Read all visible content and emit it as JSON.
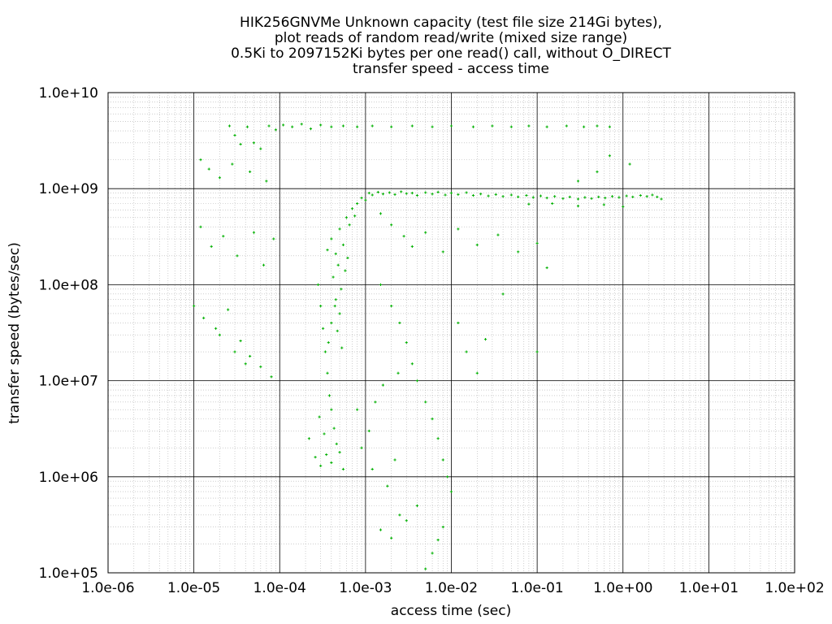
{
  "chart_data": {
    "type": "scatter",
    "title_lines": [
      "HIK256GNVMe Unknown capacity (test file size 214Gi bytes),",
      "plot reads of random read/write (mixed size range)",
      "0.5Ki to 2097152Ki bytes per one read() call, without O_DIRECT",
      "transfer speed - access time"
    ],
    "xlabel": "access time (sec)",
    "ylabel": "transfer speed (bytes/sec)",
    "x_scale": "log",
    "y_scale": "log",
    "xlim": [
      1e-06,
      100
    ],
    "ylim": [
      100000.0,
      10000000000.0
    ],
    "x_ticks": [
      1e-06,
      1e-05,
      0.0001,
      0.001,
      0.01,
      0.1,
      1,
      10,
      100
    ],
    "x_tick_labels": [
      "1.0e-06",
      "1.0e-05",
      "1.0e-04",
      "1.0e-03",
      "1.0e-02",
      "1.0e-01",
      "1.0e+00",
      "1.0e+01",
      "1.0e+02"
    ],
    "y_ticks": [
      100000.0,
      1000000.0,
      10000000.0,
      100000000.0,
      1000000000.0,
      10000000000.0
    ],
    "y_tick_labels": [
      "1.0e+05",
      "1.0e+06",
      "1.0e+07",
      "1.0e+08",
      "1.0e+09",
      "1.0e+10"
    ],
    "grid": true,
    "point_color": "#00b000",
    "series": [
      {
        "values": [
          [
            2.6e-05,
            4500000000.0
          ],
          [
            3e-05,
            3600000000.0
          ],
          [
            3.5e-05,
            2900000000.0
          ],
          [
            4.2e-05,
            4400000000.0
          ],
          [
            5e-05,
            3000000000.0
          ],
          [
            6e-05,
            2600000000.0
          ],
          [
            7.5e-05,
            4500000000.0
          ],
          [
            9e-05,
            4100000000.0
          ],
          [
            0.00011,
            4600000000.0
          ],
          [
            0.00014,
            4400000000.0
          ],
          [
            0.00018,
            4700000000.0
          ],
          [
            0.00023,
            4200000000.0
          ],
          [
            0.0003,
            4600000000.0
          ],
          [
            0.0004,
            4400000000.0
          ],
          [
            0.00055,
            4500000000.0
          ],
          [
            0.0008,
            4400000000.0
          ],
          [
            0.0012,
            4500000000.0
          ],
          [
            0.002,
            4400000000.0
          ],
          [
            0.0035,
            4500000000.0
          ],
          [
            0.006,
            4400000000.0
          ],
          [
            0.01,
            4500000000.0
          ],
          [
            0.018,
            4400000000.0
          ],
          [
            0.03,
            4500000000.0
          ],
          [
            0.05,
            4400000000.0
          ],
          [
            0.08,
            4500000000.0
          ],
          [
            0.13,
            4400000000.0
          ],
          [
            0.22,
            4500000000.0
          ],
          [
            0.35,
            4400000000.0
          ],
          [
            0.5,
            4500000000.0
          ],
          [
            0.7,
            4400000000.0
          ],
          [
            1.2e-05,
            2000000000.0
          ],
          [
            1.5e-05,
            1600000000.0
          ],
          [
            2e-05,
            1300000000.0
          ],
          [
            2.8e-05,
            1800000000.0
          ],
          [
            4.5e-05,
            1500000000.0
          ],
          [
            7e-05,
            1200000000.0
          ],
          [
            1.2e-05,
            400000000.0
          ],
          [
            1.6e-05,
            250000000.0
          ],
          [
            2.2e-05,
            320000000.0
          ],
          [
            3.2e-05,
            200000000.0
          ],
          [
            5e-05,
            350000000.0
          ],
          [
            6.5e-05,
            160000000.0
          ],
          [
            8.5e-05,
            300000000.0
          ],
          [
            1e-05,
            60000000.0
          ],
          [
            1.3e-05,
            45000000.0
          ],
          [
            1.8e-05,
            35000000.0
          ],
          [
            2.5e-05,
            55000000.0
          ],
          [
            3.5e-05,
            26000000.0
          ],
          [
            4.5e-05,
            18000000.0
          ],
          [
            6e-05,
            14000000.0
          ],
          [
            8e-05,
            11000000.0
          ],
          [
            2e-05,
            30000000.0
          ],
          [
            3e-05,
            20000000.0
          ],
          [
            4e-05,
            15000000.0
          ],
          [
            0.00028,
            100000000.0
          ],
          [
            0.0003,
            60000000.0
          ],
          [
            0.00032,
            35000000.0
          ],
          [
            0.00034,
            20000000.0
          ],
          [
            0.00036,
            12000000.0
          ],
          [
            0.00038,
            7000000.0
          ],
          [
            0.0004,
            5000000.0
          ],
          [
            0.00043,
            3200000.0
          ],
          [
            0.00046,
            2200000.0
          ],
          [
            0.0005,
            1800000.0
          ],
          [
            0.00055,
            1200000.0
          ],
          [
            0.00026,
            1600000.0
          ],
          [
            0.00022,
            2500000.0
          ],
          [
            0.0003,
            1300000.0
          ],
          [
            0.00035,
            1700000.0
          ],
          [
            0.0004,
            1400000.0
          ],
          [
            0.00029,
            4200000.0
          ],
          [
            0.00033,
            2800000.0
          ],
          [
            0.00036,
            230000000.0
          ],
          [
            0.0004,
            300000000.0
          ],
          [
            0.00045,
            210000000.0
          ],
          [
            0.0005,
            380000000.0
          ],
          [
            0.00055,
            260000000.0
          ],
          [
            0.0006,
            500000000.0
          ],
          [
            0.00065,
            420000000.0
          ],
          [
            0.0007,
            620000000.0
          ],
          [
            0.00075,
            520000000.0
          ],
          [
            0.0008,
            700000000.0
          ],
          [
            0.0009,
            800000000.0
          ],
          [
            0.001,
            760000000.0
          ],
          [
            0.00042,
            120000000.0
          ],
          [
            0.00048,
            160000000.0
          ],
          [
            0.00052,
            90000000.0
          ],
          [
            0.00058,
            140000000.0
          ],
          [
            0.00062,
            190000000.0
          ],
          [
            0.00044,
            60000000.0
          ],
          [
            0.0004,
            40000000.0
          ],
          [
            0.00037,
            25000000.0
          ],
          [
            0.00045,
            70000000.0
          ],
          [
            0.0005,
            50000000.0
          ],
          [
            0.00047,
            33000000.0
          ],
          [
            0.00053,
            22000000.0
          ],
          [
            0.0011,
            900000000.0
          ],
          [
            0.0012,
            860000000.0
          ],
          [
            0.0014,
            920000000.0
          ],
          [
            0.0016,
            880000000.0
          ],
          [
            0.0019,
            910000000.0
          ],
          [
            0.0022,
            870000000.0
          ],
          [
            0.0026,
            930000000.0
          ],
          [
            0.003,
            890000000.0
          ],
          [
            0.0035,
            900000000.0
          ],
          [
            0.004,
            850000000.0
          ],
          [
            0.005,
            910000000.0
          ],
          [
            0.006,
            880000000.0
          ],
          [
            0.007,
            920000000.0
          ],
          [
            0.0085,
            860000000.0
          ],
          [
            0.01,
            900000000.0
          ],
          [
            0.012,
            870000000.0
          ],
          [
            0.015,
            910000000.0
          ],
          [
            0.018,
            850000000.0
          ],
          [
            0.022,
            880000000.0
          ],
          [
            0.027,
            840000000.0
          ],
          [
            0.033,
            870000000.0
          ],
          [
            0.04,
            830000000.0
          ],
          [
            0.05,
            860000000.0
          ],
          [
            0.06,
            820000000.0
          ],
          [
            0.075,
            850000000.0
          ],
          [
            0.09,
            810000000.0
          ],
          [
            0.11,
            840000000.0
          ],
          [
            0.13,
            800000000.0
          ],
          [
            0.16,
            830000000.0
          ],
          [
            0.2,
            790000000.0
          ],
          [
            0.24,
            820000000.0
          ],
          [
            0.3,
            780000000.0
          ],
          [
            0.36,
            810000000.0
          ],
          [
            0.43,
            790000000.0
          ],
          [
            0.52,
            820000000.0
          ],
          [
            0.62,
            800000000.0
          ],
          [
            0.75,
            830000000.0
          ],
          [
            0.9,
            810000000.0
          ],
          [
            1.1,
            840000000.0
          ],
          [
            1.3,
            820000000.0
          ],
          [
            1.6,
            850000000.0
          ],
          [
            1.9,
            830000000.0
          ],
          [
            2.2,
            860000000.0
          ],
          [
            2.5,
            820000000.0
          ],
          [
            2.8,
            780000000.0
          ],
          [
            1.0,
            650000000.0
          ],
          [
            0.6,
            680000000.0
          ],
          [
            0.3,
            660000000.0
          ],
          [
            0.15,
            700000000.0
          ],
          [
            0.08,
            690000000.0
          ],
          [
            0.3,
            1200000000.0
          ],
          [
            0.5,
            1500000000.0
          ],
          [
            0.7,
            2200000000.0
          ],
          [
            1.2,
            1800000000.0
          ],
          [
            0.0015,
            550000000.0
          ],
          [
            0.002,
            420000000.0
          ],
          [
            0.0028,
            320000000.0
          ],
          [
            0.0035,
            250000000.0
          ],
          [
            0.005,
            350000000.0
          ],
          [
            0.008,
            220000000.0
          ],
          [
            0.012,
            380000000.0
          ],
          [
            0.02,
            260000000.0
          ],
          [
            0.035,
            330000000.0
          ],
          [
            0.06,
            220000000.0
          ],
          [
            0.1,
            270000000.0
          ],
          [
            0.13,
            150000000.0
          ],
          [
            0.0015,
            100000000.0
          ],
          [
            0.002,
            60000000.0
          ],
          [
            0.0025,
            40000000.0
          ],
          [
            0.003,
            25000000.0
          ],
          [
            0.0035,
            15000000.0
          ],
          [
            0.004,
            10000000.0
          ],
          [
            0.005,
            6000000.0
          ],
          [
            0.006,
            4000000.0
          ],
          [
            0.007,
            2500000.0
          ],
          [
            0.008,
            1500000.0
          ],
          [
            0.009,
            1000000.0
          ],
          [
            0.01,
            700000.0
          ],
          [
            0.0015,
            280000.0
          ],
          [
            0.002,
            230000.0
          ],
          [
            0.0025,
            400000.0
          ],
          [
            0.003,
            350000.0
          ],
          [
            0.004,
            500000.0
          ],
          [
            0.005,
            110000.0
          ],
          [
            0.006,
            160000.0
          ],
          [
            0.007,
            220000.0
          ],
          [
            0.008,
            300000.0
          ],
          [
            0.0012,
            1200000.0
          ],
          [
            0.0018,
            800000.0
          ],
          [
            0.0022,
            1500000.0
          ],
          [
            0.0008,
            5000000.0
          ],
          [
            0.0009,
            2000000.0
          ],
          [
            0.0011,
            3000000.0
          ],
          [
            0.0013,
            6000000.0
          ],
          [
            0.0016,
            9000000.0
          ],
          [
            0.0024,
            12000000.0
          ],
          [
            0.012,
            40000000.0
          ],
          [
            0.015,
            20000000.0
          ],
          [
            0.02,
            12000000.0
          ],
          [
            0.025,
            27000000.0
          ],
          [
            0.1,
            20000000.0
          ],
          [
            0.04,
            80000000.0
          ]
        ]
      }
    ]
  }
}
